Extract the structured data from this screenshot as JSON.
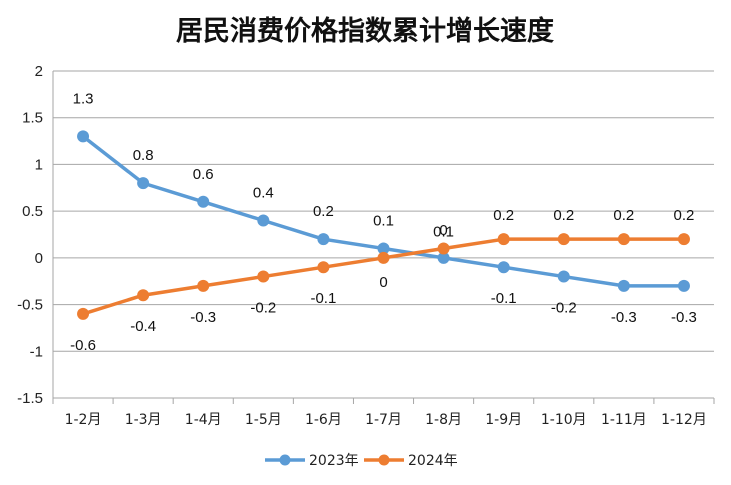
{
  "chart_data": {
    "type": "line",
    "title": "居民消费价格指数累计增长速度",
    "categories": [
      "1-2月",
      "1-3月",
      "1-4月",
      "1-5月",
      "1-6月",
      "1-7月",
      "1-8月",
      "1-9月",
      "1-10月",
      "1-11月",
      "1-12月"
    ],
    "ylim": [
      -1.5,
      2
    ],
    "yticks": [
      "2",
      "1.5",
      "1",
      "0.5",
      "0",
      "-0.5",
      "-1",
      "-1.5"
    ],
    "grid": true,
    "legend_position": "bottom",
    "series": [
      {
        "name": "2023年",
        "color": "#5b9bd5",
        "values": [
          1.3,
          0.8,
          0.6,
          0.4,
          0.2,
          0.1,
          0,
          -0.1,
          -0.2,
          -0.3,
          -0.3
        ],
        "labels": [
          "1.3",
          "0.8",
          "0.6",
          "0.4",
          "0.2",
          "0.1",
          "0",
          "-0.1",
          "-0.2",
          "-0.3",
          "-0.3"
        ]
      },
      {
        "name": "2024年",
        "color": "#ed7d31",
        "values": [
          -0.6,
          -0.4,
          -0.3,
          -0.2,
          -0.1,
          0,
          0.1,
          0.2,
          0.2,
          0.2,
          0.2
        ],
        "labels": [
          "-0.6",
          "-0.4",
          "-0.3",
          "-0.2",
          "-0.1",
          "0",
          "0.1",
          "0.2",
          "0.2",
          "0.2",
          "0.2"
        ]
      }
    ]
  }
}
